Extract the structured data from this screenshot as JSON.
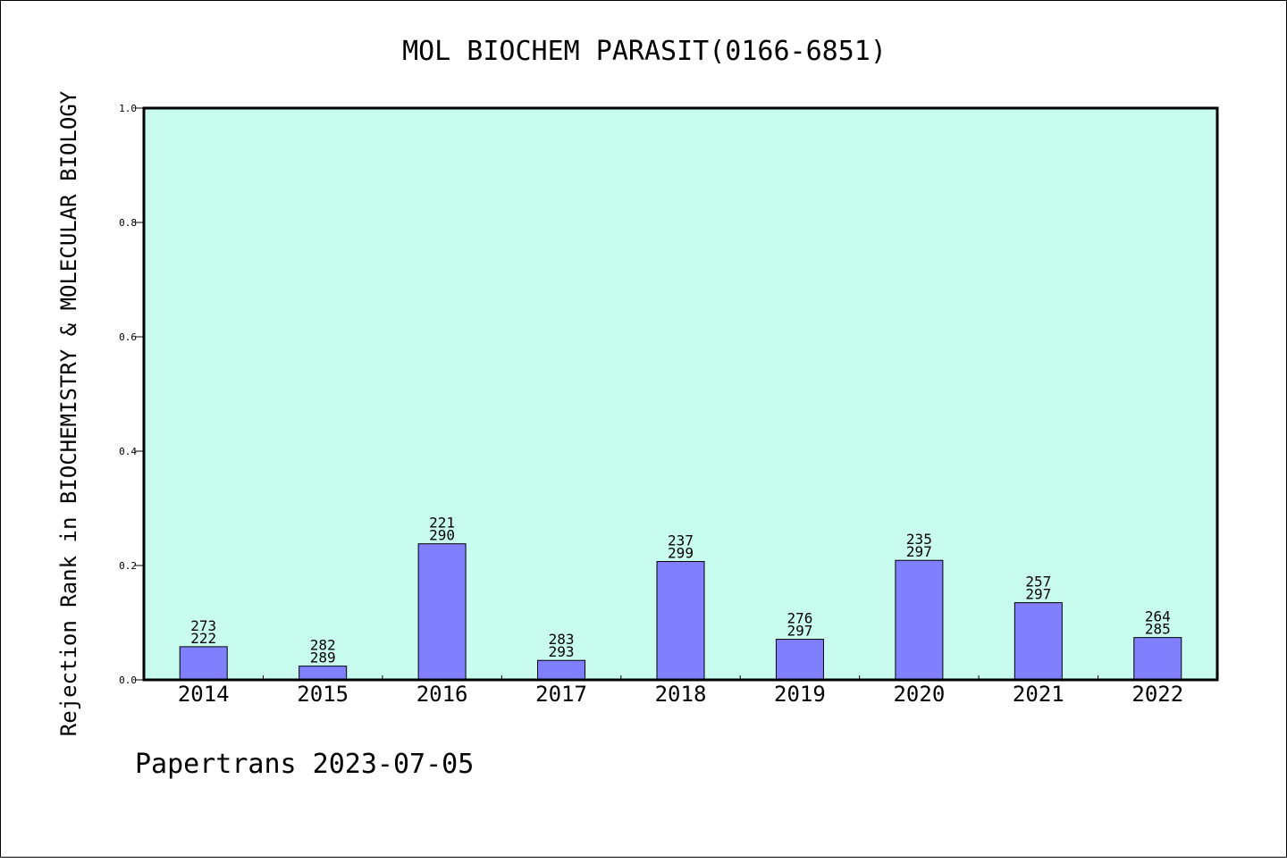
{
  "chart_data": {
    "type": "bar",
    "title": "MOL BIOCHEM PARASIT(0166-6851)",
    "ylabel": "Rejection Rank in BIOCHEMISTRY & MOLECULAR BIOLOGY",
    "xlabel": "",
    "ylim": [
      0,
      1.0
    ],
    "yticks": [
      "0.0",
      "0.2",
      "0.4",
      "0.6",
      "0.8",
      "1.0"
    ],
    "categories": [
      "2014",
      "2015",
      "2016",
      "2017",
      "2018",
      "2019",
      "2020",
      "2021",
      "2022"
    ],
    "values": [
      0.058,
      0.024,
      0.238,
      0.034,
      0.207,
      0.071,
      0.209,
      0.135,
      0.074
    ],
    "labels_top": [
      "273",
      "282",
      "221",
      "283",
      "237",
      "276",
      "235",
      "257",
      "264"
    ],
    "labels_bottom": [
      "222",
      "289",
      "290",
      "293",
      "299",
      "297",
      "297",
      "297",
      "285"
    ],
    "grid": false,
    "legend": "none",
    "colors": {
      "plot_background": "#c8fcee",
      "bar_fill": "#8080ff",
      "bar_stroke": "#000000"
    }
  },
  "footer": {
    "text": "Papertrans 2023-07-05"
  }
}
